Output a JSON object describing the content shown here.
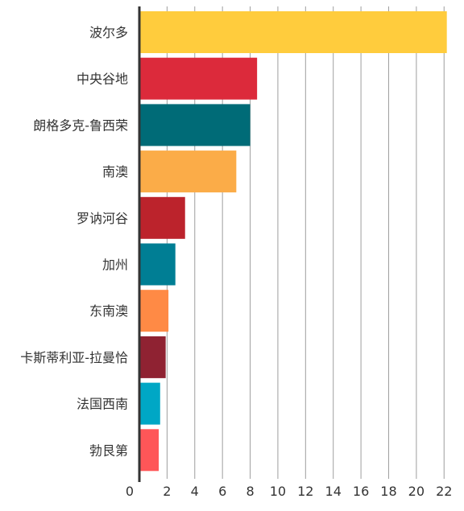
{
  "chart_data": {
    "type": "bar",
    "orientation": "horizontal",
    "categories": [
      "波尔多",
      "中央谷地",
      "朗格多克-鲁西荣",
      "南澳",
      "罗讷河谷",
      "加州",
      "东南澳",
      "卡斯蒂利亚-拉曼恰",
      "法国西南",
      "勃艮第"
    ],
    "values": [
      22.2,
      8.5,
      8.0,
      7.0,
      3.3,
      2.6,
      2.1,
      1.9,
      1.5,
      1.4
    ],
    "colors": [
      "#FFCC3D",
      "#DC2A3B",
      "#006B77",
      "#FBAC48",
      "#BC232C",
      "#007E94",
      "#FF8A45",
      "#8F2232",
      "#00A7C5",
      "#FF5658"
    ],
    "xticks": [
      0,
      2,
      4,
      6,
      8,
      10,
      12,
      14,
      16,
      18,
      20,
      22
    ],
    "xlim": [
      0,
      22.8
    ],
    "grid": true,
    "title": "",
    "xlabel": "",
    "ylabel": ""
  }
}
